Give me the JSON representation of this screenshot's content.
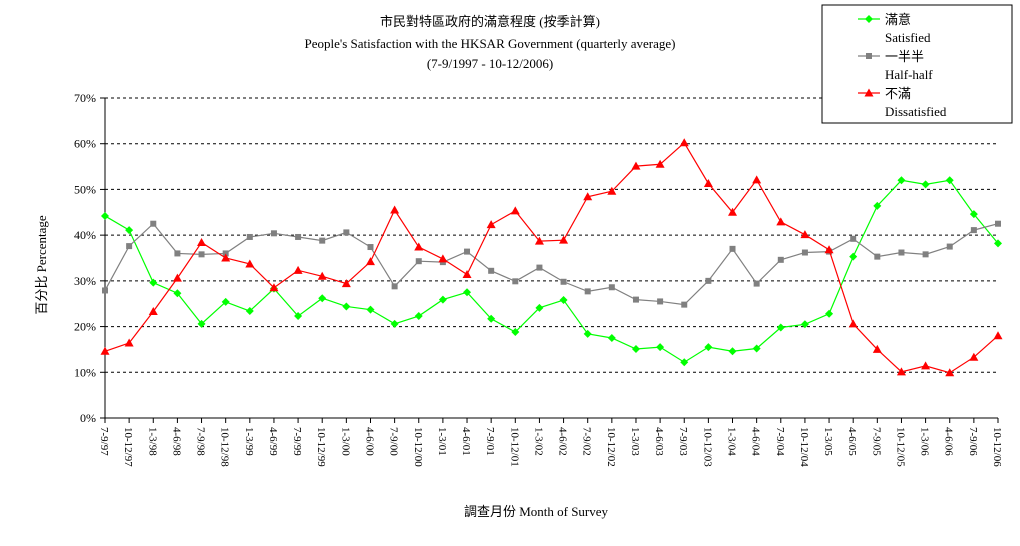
{
  "chart_data": {
    "type": "line",
    "title_zh": "市民對特區政府的滿意程度 (按季計算)",
    "title_en": "People's Satisfaction with the HKSAR Government (quarterly average)",
    "subtitle": "(7-9/1997 - 10-12/2006)",
    "xlabel": "調查月份 Month of Survey",
    "ylabel": "百分比 Percentage",
    "ylim": [
      0,
      70
    ],
    "y_ticks": [
      "0%",
      "10%",
      "20%",
      "30%",
      "40%",
      "50%",
      "60%",
      "70%"
    ],
    "grid": true,
    "legend_position": "top-right",
    "categories": [
      "7-9/97",
      "10-12/97",
      "1-3/98",
      "4-6/98",
      "7-9/98",
      "10-12/98",
      "1-3/99",
      "4-6/99",
      "7-9/99",
      "10-12/99",
      "1-3/00",
      "4-6/00",
      "7-9/00",
      "10-12/00",
      "1-3/01",
      "4-6/01",
      "7-9/01",
      "10-12/01",
      "1-3/02",
      "4-6/02",
      "7-9/02",
      "10-12/02",
      "1-3/03",
      "4-6/03",
      "7-9/03",
      "10-12/03",
      "1-3/04",
      "4-6/04",
      "7-9/04",
      "10-12/04",
      "1-3/05",
      "4-6/05",
      "7-9/05",
      "10-12/05",
      "1-3/06",
      "4-6/06",
      "7-9/06",
      "10-12/06"
    ],
    "series": [
      {
        "name": "滿意",
        "name_en": "Satisfied",
        "color": "#00ff00",
        "marker": "diamond",
        "values": [
          44.2,
          41.1,
          29.6,
          27.3,
          20.6,
          25.4,
          23.4,
          28.3,
          22.3,
          26.2,
          24.4,
          23.7,
          20.6,
          22.3,
          25.9,
          27.5,
          21.7,
          18.8,
          24.1,
          25.8,
          18.4,
          17.5,
          15.1,
          15.5,
          12.2,
          15.5,
          14.6,
          15.2,
          19.8,
          20.5,
          22.8,
          35.3,
          46.4,
          52.0,
          51.1,
          52.0,
          44.6,
          38.2
        ]
      },
      {
        "name": "一半半",
        "name_en": "Half-half",
        "color": "#808080",
        "marker": "square",
        "values": [
          27.9,
          37.6,
          42.5,
          36.0,
          35.8,
          36.0,
          39.6,
          40.4,
          39.6,
          38.8,
          40.6,
          37.4,
          28.8,
          34.3,
          34.1,
          36.4,
          32.2,
          29.9,
          32.9,
          29.8,
          27.7,
          28.6,
          25.9,
          25.5,
          24.8,
          30.0,
          37.0,
          29.4,
          34.6,
          36.2,
          36.4,
          39.2,
          35.3,
          36.2,
          35.8,
          37.5,
          41.1,
          42.5
        ]
      },
      {
        "name": "不滿",
        "name_en": "Dissatisfied",
        "color": "#ff0000",
        "marker": "triangle",
        "values": [
          14.6,
          16.4,
          23.3,
          30.6,
          38.4,
          35.0,
          33.7,
          28.5,
          32.3,
          31.0,
          29.4,
          34.2,
          45.5,
          37.4,
          34.8,
          31.4,
          42.3,
          45.3,
          38.7,
          38.9,
          48.4,
          49.6,
          55.1,
          55.5,
          60.2,
          51.3,
          45.0,
          52.1,
          42.9,
          40.1,
          36.8,
          20.6,
          15.0,
          10.1,
          11.4,
          9.9,
          13.3,
          18.0
        ]
      }
    ]
  }
}
